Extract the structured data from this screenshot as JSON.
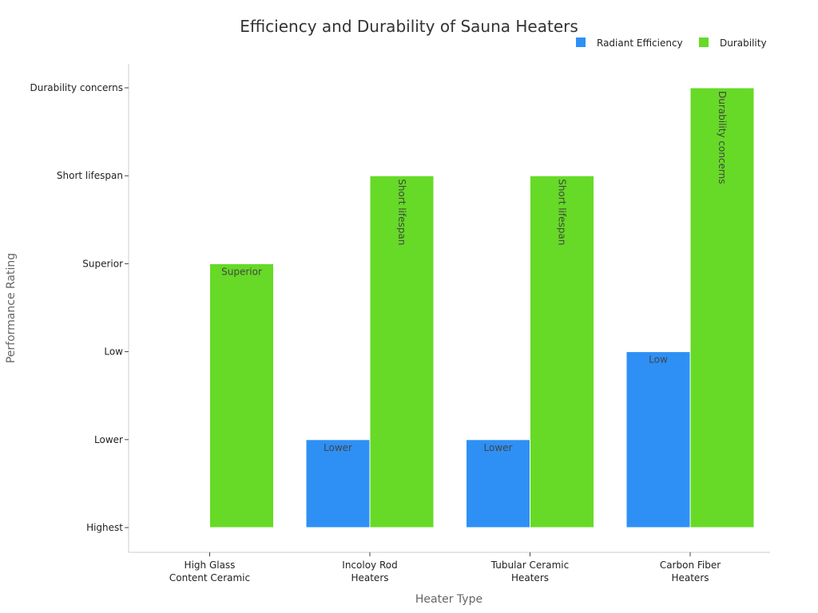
{
  "chart_data": {
    "type": "bar",
    "title": "Efficiency and Durability of Sauna Heaters",
    "xlabel": "Heater Type",
    "ylabel": "Performance Rating",
    "y_categories": [
      "Highest",
      "Lower",
      "Low",
      "Superior",
      "Short lifespan",
      "Durability concerns"
    ],
    "categories": [
      [
        "High Glass",
        "Content Ceramic"
      ],
      [
        "Incoloy Rod",
        "Heaters"
      ],
      [
        "Tubular Ceramic",
        "Heaters"
      ],
      [
        "Carbon Fiber",
        "Heaters"
      ]
    ],
    "series": [
      {
        "name": "Radiant Efficiency",
        "color": "#2e90f5",
        "values": [
          "Highest",
          "Lower",
          "Lower",
          "Low"
        ]
      },
      {
        "name": "Durability",
        "color": "#66da26",
        "values": [
          "Superior",
          "Short lifespan",
          "Short lifespan",
          "Durability concerns"
        ]
      }
    ],
    "legend_position": "top-right",
    "grid": false
  }
}
